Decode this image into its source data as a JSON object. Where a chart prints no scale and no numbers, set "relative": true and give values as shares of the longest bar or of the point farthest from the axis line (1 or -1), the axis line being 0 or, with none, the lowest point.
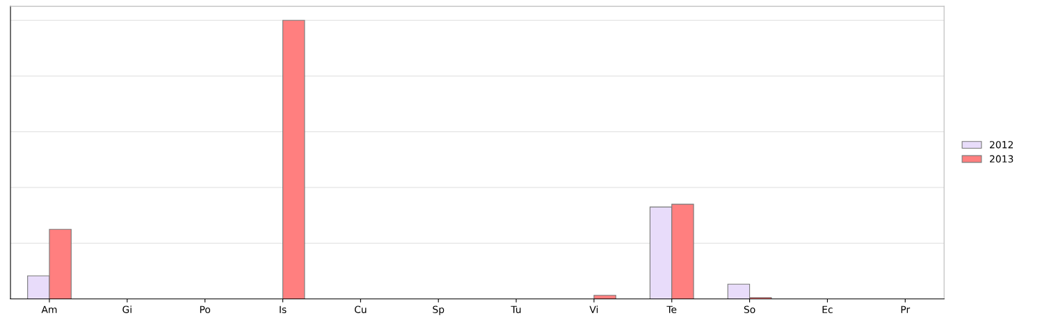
{
  "chart_data": {
    "type": "bar",
    "relative": true,
    "grid": "y",
    "legend": "right",
    "categories": [
      "Am",
      "Gi",
      "Po",
      "Is",
      "Cu",
      "Sp",
      "Tu",
      "Vi",
      "Te",
      "So",
      "Ec",
      "Pr"
    ],
    "series": [
      {
        "name": "2012",
        "color": "#e8dcfa",
        "values": [
          0.083,
          0,
          0,
          0,
          0,
          0,
          0,
          0,
          0.33,
          0.053,
          0,
          0
        ]
      },
      {
        "name": "2013",
        "color": "#ff7f7f",
        "values": [
          0.25,
          0,
          0,
          1,
          0,
          0,
          0,
          0.013,
          0.34,
          0.005,
          0,
          0
        ]
      }
    ]
  }
}
